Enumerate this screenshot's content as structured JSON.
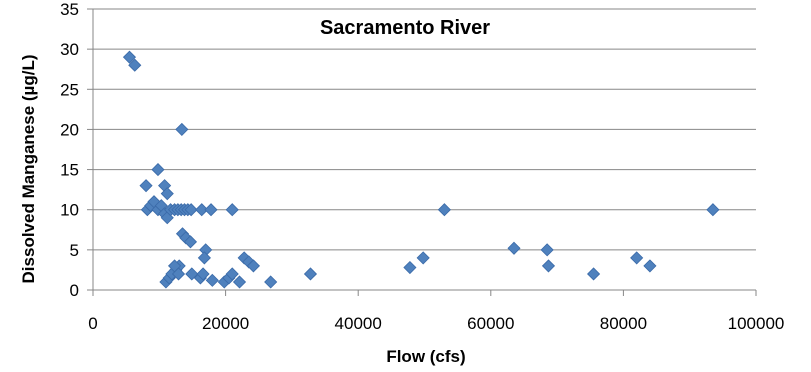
{
  "chart_data": {
    "type": "scatter",
    "title": "Sacramento River",
    "xlabel": "Flow (cfs)",
    "ylabel": "Dissolved Manganese (µg/L)",
    "xlim": [
      0,
      100000
    ],
    "ylim": [
      0,
      35
    ],
    "xticks": [
      0,
      20000,
      40000,
      60000,
      80000,
      100000
    ],
    "yticks": [
      0,
      5,
      10,
      15,
      20,
      25,
      30,
      35
    ],
    "grid": "horizontal",
    "legend": "none",
    "marker_color": "#4F81BD",
    "marker_edge_color": "#3A6AA8",
    "series": [
      {
        "x": [
          5500,
          6300,
          8000,
          8200,
          8700,
          9200,
          9800,
          10300,
          10800,
          11200,
          11700,
          12300,
          12800,
          13300,
          13800,
          14300,
          14800,
          13400,
          13500,
          14000,
          14700,
          16400,
          17000,
          17800,
          21000,
          9800,
          10800,
          11200,
          11000,
          11500,
          12000,
          12500,
          13000,
          11900,
          12300,
          12900,
          14900,
          16200,
          16600,
          16800,
          18000,
          19800,
          20500,
          21000,
          22100,
          22800,
          23500,
          24200,
          26800,
          32800,
          47800,
          49800,
          53000,
          63500,
          68500,
          68700,
          75500,
          82000,
          84000,
          93500
        ],
        "y": [
          29,
          28,
          13,
          10,
          10.5,
          11,
          10,
          10.5,
          9.5,
          9,
          10,
          10,
          10,
          10,
          10,
          10,
          10,
          20,
          7,
          6.5,
          6,
          10,
          5,
          10,
          10,
          15,
          13,
          12,
          1,
          1.5,
          2,
          2.5,
          3,
          2,
          3,
          2,
          2,
          1.5,
          2,
          4,
          1.2,
          1,
          1.5,
          2,
          1,
          4,
          3.5,
          3,
          1,
          2,
          2.8,
          4,
          10,
          5.2,
          5,
          3,
          2,
          4,
          3,
          10
        ]
      }
    ]
  }
}
